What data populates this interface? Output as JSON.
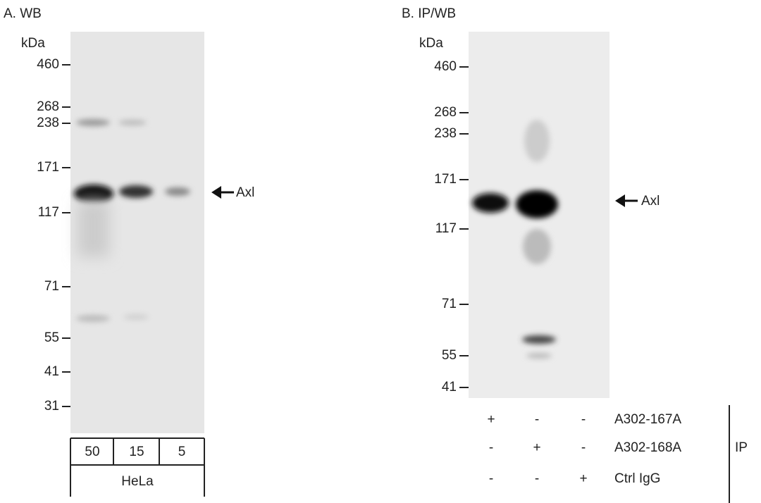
{
  "panel_a": {
    "title": "A. WB",
    "unit": "kDa",
    "markers": [
      460,
      268,
      238,
      171,
      117,
      71,
      55,
      41,
      31
    ],
    "target": "Axl",
    "lanes": [
      50,
      15,
      5
    ],
    "sample": "HeLa"
  },
  "panel_b": {
    "title": "B. IP/WB",
    "unit": "kDa",
    "markers": [
      460,
      268,
      238,
      171,
      117,
      71,
      55,
      41
    ],
    "target": "Axl",
    "rows": [
      {
        "label": "A302-167A",
        "marks": [
          "+",
          "-",
          "-"
        ]
      },
      {
        "label": "A302-168A",
        "marks": [
          "-",
          "+",
          "-"
        ]
      },
      {
        "label": "Ctrl IgG",
        "marks": [
          "-",
          "-",
          "+"
        ]
      }
    ],
    "group": "IP"
  }
}
